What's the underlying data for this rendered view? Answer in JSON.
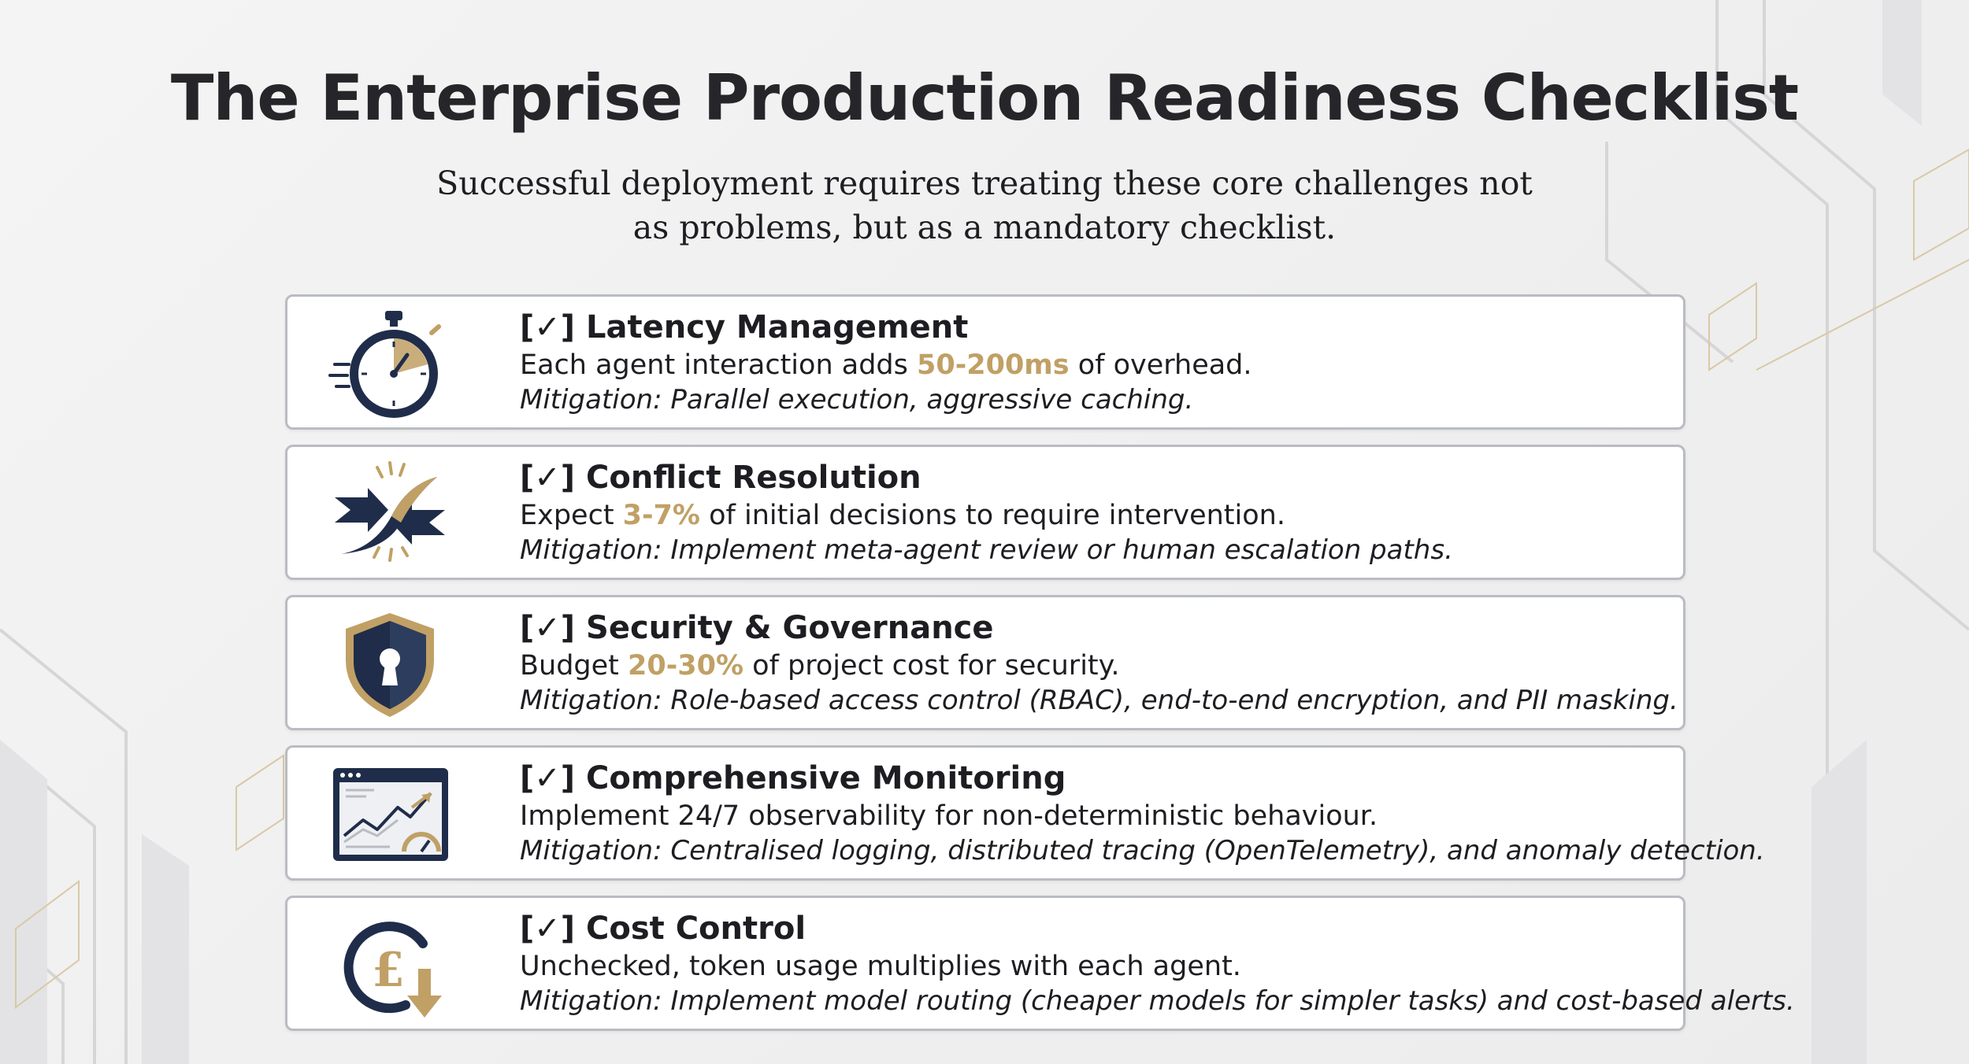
{
  "title": "The Enterprise Production Readiness Checklist",
  "subtitle": "Successful deployment requires treating these core challenges not as problems, but as a mandatory checklist.",
  "colors": {
    "navy": "#1f2d4a",
    "gold": "#c0a065",
    "card_border": "#b9bcc2",
    "highlight": "#c0a065"
  },
  "items": [
    {
      "icon": "stopwatch-icon",
      "heading": "[✓] Latency Management",
      "desc_before": "Each agent interaction adds ",
      "desc_highlight": "50-200ms",
      "desc_after": " of overhead.",
      "mitigation": "Mitigation: Parallel execution, aggressive caching."
    },
    {
      "icon": "converging-arrows-icon",
      "heading": "[✓] Conflict Resolution",
      "desc_before": "Expect ",
      "desc_highlight": "3-7%",
      "desc_after": " of initial decisions to require intervention.",
      "mitigation": "Mitigation: Implement meta-agent review or human escalation paths."
    },
    {
      "icon": "shield-keyhole-icon",
      "heading": "[✓] Security & Governance",
      "desc_before": "Budget ",
      "desc_highlight": "20-30%",
      "desc_after": " of project cost for security.",
      "mitigation": "Mitigation: Role-based access control (RBAC), end-to-end encryption, and PII masking."
    },
    {
      "icon": "monitoring-dashboard-icon",
      "heading": "[✓] Comprehensive Monitoring",
      "desc_before": "Implement 24/7 observability for non-deterministic behaviour.",
      "desc_highlight": "",
      "desc_after": "",
      "mitigation": "Mitigation: Centralised logging, distributed tracing (OpenTelemetry), and anomaly detection."
    },
    {
      "icon": "pound-down-arrow-icon",
      "heading": "[✓] Cost Control",
      "desc_before": "Unchecked, token usage multiplies with each agent.",
      "desc_highlight": "",
      "desc_after": "",
      "mitigation": "Mitigation: Implement model routing (cheaper models for simpler tasks) and cost-based alerts."
    }
  ]
}
